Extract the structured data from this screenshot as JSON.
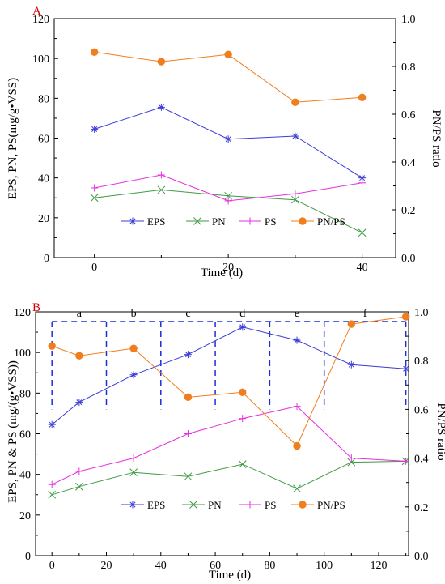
{
  "colors": {
    "EPS": "#3b3bd6",
    "PN": "#3e9a45",
    "PS": "#e52ee0",
    "PN/PS": "#f07e1e",
    "phase_lines": "#1f2fd8",
    "panel_label": "#d40000"
  },
  "chart_data": [
    {
      "type": "line",
      "panel": "A",
      "xlabel": "Time (d)",
      "ylabel": "EPS, PN, PS(mg/g•VSS)",
      "y2label": "PN/PS ratio",
      "xlim": [
        -6,
        45
      ],
      "ylim": [
        0,
        120
      ],
      "y2lim": [
        0.0,
        1.0
      ],
      "xticks": [
        "0",
        "20",
        "40"
      ],
      "xtick_values": [
        0,
        20,
        40
      ],
      "yticks": [
        "0",
        "20",
        "40",
        "60",
        "80",
        "100",
        "120"
      ],
      "y2ticks": [
        "0.0",
        "0.2",
        "0.4",
        "0.6",
        "0.8",
        "1.0"
      ],
      "legend_position": "lower-center",
      "x": [
        0,
        10,
        20,
        30,
        40
      ],
      "series": [
        {
          "name": "EPS",
          "marker": "asterisk",
          "axis": "left",
          "values": [
            64.5,
            75.5,
            59.5,
            61.0,
            40.0
          ]
        },
        {
          "name": "PN",
          "marker": "x",
          "axis": "left",
          "values": [
            30.0,
            34.0,
            31.0,
            29.0,
            12.5
          ]
        },
        {
          "name": "PS",
          "marker": "plus",
          "axis": "left",
          "values": [
            35.0,
            41.5,
            28.5,
            32.0,
            37.5
          ]
        },
        {
          "name": "PN/PS",
          "marker": "dot",
          "axis": "right",
          "values": [
            0.86,
            0.82,
            0.85,
            0.65,
            0.67
          ]
        }
      ]
    },
    {
      "type": "line",
      "panel": "B",
      "xlabel": "Time (d)",
      "ylabel": "EPS, PN & PS (mg/(g•VSS))",
      "y2label": "PN/PS ratio",
      "xlim": [
        -6,
        131
      ],
      "ylim": [
        0,
        120
      ],
      "y2lim": [
        0.0,
        1.0
      ],
      "xticks": [
        "0",
        "20",
        "40",
        "60",
        "80",
        "100",
        "120"
      ],
      "xtick_values": [
        0,
        20,
        40,
        60,
        80,
        100,
        120
      ],
      "yticks": [
        "0",
        "20",
        "40",
        "60",
        "80",
        "100",
        "120"
      ],
      "y2ticks": [
        "0.0",
        "0.2",
        "0.4",
        "0.6",
        "0.8",
        "1.0"
      ],
      "legend_position": "lower-center",
      "phases": {
        "labels": [
          "a",
          "b",
          "c",
          "d",
          "e",
          "f"
        ],
        "boundaries": [
          0,
          20,
          40,
          60,
          80,
          100,
          130
        ],
        "top_ratio": 0.96,
        "bottom_ratio": 0.6
      },
      "x": [
        0,
        10,
        30,
        50,
        70,
        90,
        110,
        130
      ],
      "series": [
        {
          "name": "EPS",
          "marker": "asterisk",
          "axis": "left",
          "values": [
            64.5,
            75.5,
            89.0,
            99.0,
            112.5,
            106.0,
            94.0,
            92.0
          ]
        },
        {
          "name": "PN",
          "marker": "x",
          "axis": "left",
          "values": [
            30.0,
            34.0,
            41.0,
            39.0,
            45.0,
            33.0,
            46.0,
            46.5
          ]
        },
        {
          "name": "PS",
          "marker": "plus",
          "axis": "left",
          "values": [
            35.0,
            41.5,
            48.0,
            60.0,
            67.5,
            73.5,
            48.0,
            46.5
          ]
        },
        {
          "name": "PN/PS",
          "marker": "dot",
          "axis": "right",
          "values": [
            0.86,
            0.82,
            0.85,
            0.65,
            0.67,
            0.45,
            0.95,
            0.98
          ]
        }
      ]
    }
  ]
}
